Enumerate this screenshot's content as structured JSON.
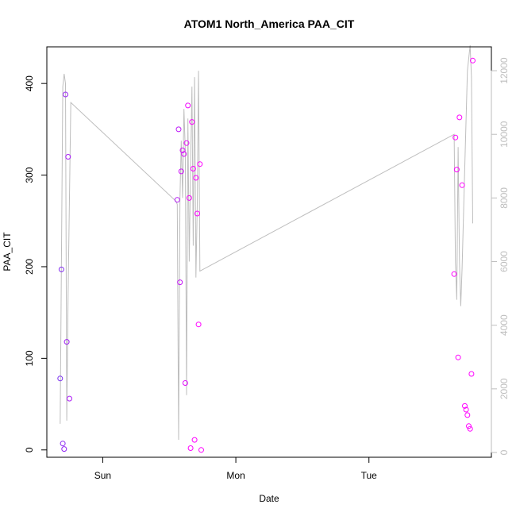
{
  "chart_data": {
    "type": "scatter",
    "title": "ATOM1 North_America PAA_CIT",
    "xlabel": "Date",
    "ylabel": "PAA_CIT",
    "x_tick_labels": [
      "Sun",
      "Mon",
      "Tue"
    ],
    "x_ticks_days": [
      1,
      2,
      3
    ],
    "xlim_days": [
      0.58,
      3.92
    ],
    "ylim": [
      -8,
      440
    ],
    "y_ticks": [
      0,
      100,
      200,
      300,
      400
    ],
    "y_right_ticks": [
      0,
      2000,
      4000,
      6000,
      8000,
      10000,
      12000
    ],
    "y_right_lim": [
      -150,
      12750
    ],
    "colors": {
      "frame": "#000000",
      "right_axis": "#bebebe",
      "line": "#bebebe",
      "point_scale": [
        "#7b2ff0",
        "#ff00ff"
      ]
    },
    "series": [
      {
        "kind": "points",
        "x_days": [
          0.68,
          0.69,
          0.7,
          0.71,
          0.72,
          0.73,
          0.74,
          0.75,
          1.56,
          1.57,
          1.58,
          1.59,
          1.6,
          1.61,
          1.62,
          1.63,
          1.64,
          1.65,
          1.66,
          1.67,
          1.68,
          1.69,
          1.7,
          1.71,
          1.72,
          1.73,
          1.74,
          3.64,
          3.65,
          3.66,
          3.67,
          3.68,
          3.7,
          3.72,
          3.73,
          3.74,
          3.75,
          3.76,
          3.77,
          3.78
        ],
        "values": [
          78,
          197,
          7,
          1,
          388,
          118,
          320,
          56,
          273,
          350,
          183,
          304,
          327,
          323,
          73,
          335,
          376,
          275,
          2,
          358,
          307,
          11,
          297,
          258,
          137,
          312,
          0,
          192,
          341,
          306,
          101,
          363,
          289,
          48,
          44,
          38,
          26,
          23,
          83,
          425
        ]
      },
      {
        "kind": "line",
        "axis": "right",
        "x_days": [
          0.68,
          0.7,
          0.71,
          0.72,
          0.73,
          0.74,
          0.76,
          1.55,
          1.56,
          1.57,
          1.58,
          1.59,
          1.6,
          1.61,
          1.62,
          1.63,
          1.64,
          1.65,
          1.66,
          1.67,
          1.68,
          1.69,
          1.7,
          1.71,
          1.72,
          1.73,
          3.64,
          3.65,
          3.66,
          3.67,
          3.68,
          3.69,
          3.7,
          3.72,
          3.74,
          3.76,
          3.77,
          3.78
        ],
        "values": [
          900,
          11500,
          11900,
          11600,
          1000,
          5000,
          11000,
          7900,
          7800,
          400,
          8000,
          9800,
          8000,
          10800,
          9500,
          1800,
          10500,
          6000,
          9000,
          11500,
          6500,
          11800,
          5500,
          7800,
          12000,
          5700,
          10000,
          6000,
          4800,
          9600,
          6000,
          4600,
          5800,
          9000,
          12000,
          12800,
          11800,
          7200
        ]
      }
    ]
  }
}
